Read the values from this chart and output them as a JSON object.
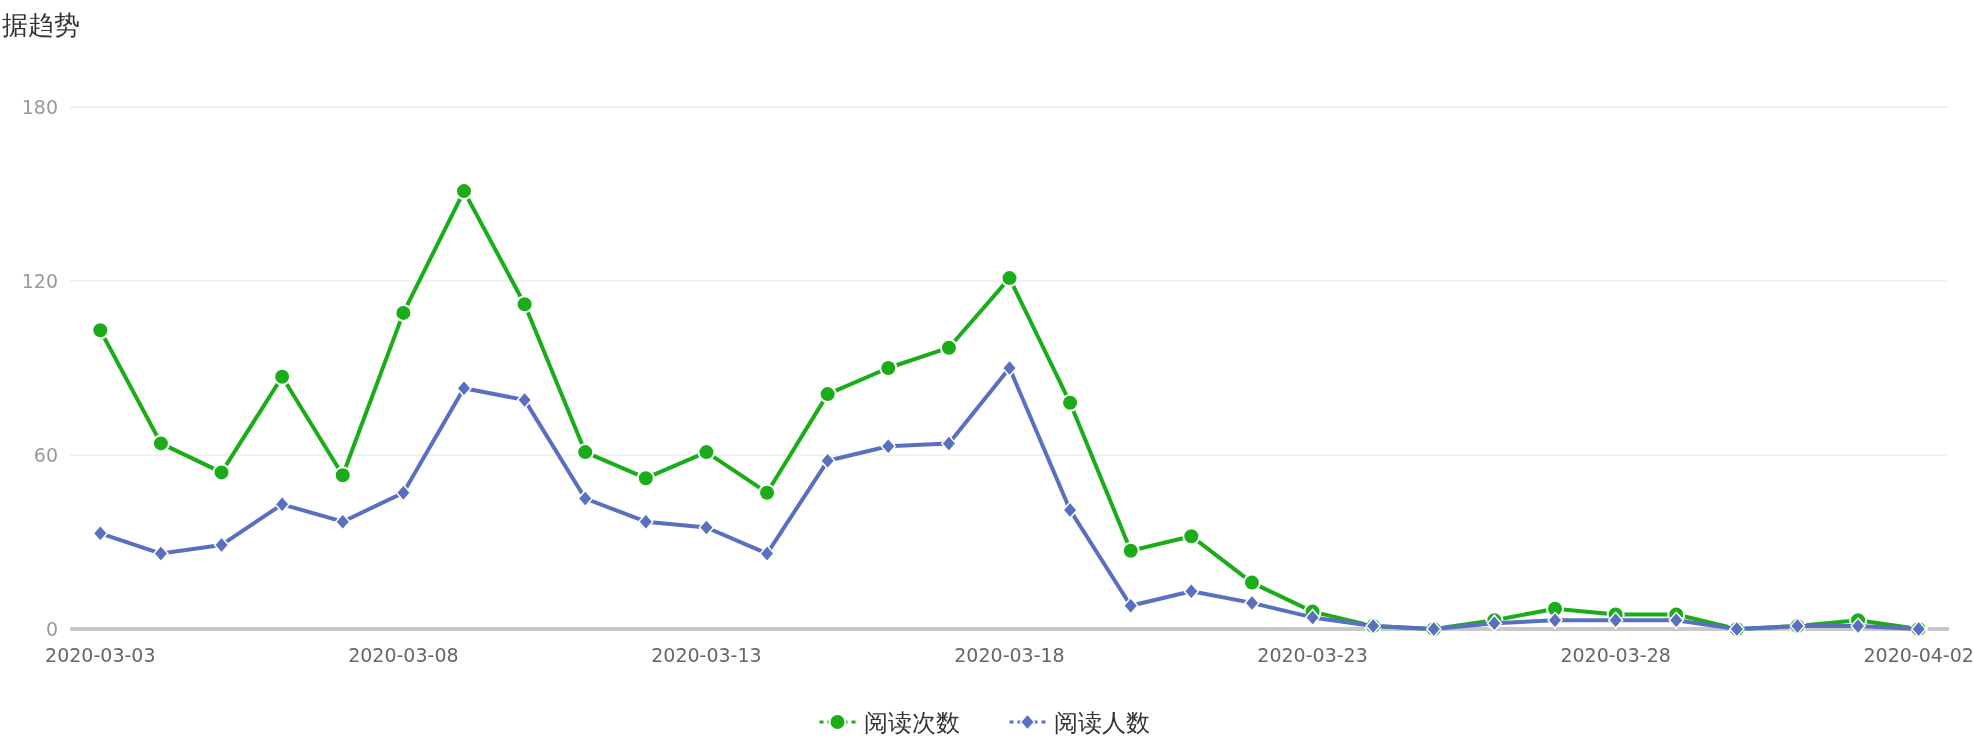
{
  "chart_data": {
    "type": "line",
    "title": "据趋势",
    "x": [
      "2020-03-03",
      "2020-03-04",
      "2020-03-05",
      "2020-03-06",
      "2020-03-07",
      "2020-03-08",
      "2020-03-09",
      "2020-03-10",
      "2020-03-11",
      "2020-03-12",
      "2020-03-13",
      "2020-03-14",
      "2020-03-15",
      "2020-03-16",
      "2020-03-17",
      "2020-03-18",
      "2020-03-19",
      "2020-03-20",
      "2020-03-21",
      "2020-03-22",
      "2020-03-23",
      "2020-03-24",
      "2020-03-25",
      "2020-03-26",
      "2020-03-27",
      "2020-03-28",
      "2020-03-29",
      "2020-03-30",
      "2020-03-31",
      "2020-04-01",
      "2020-04-02"
    ],
    "series": [
      {
        "name": "阅读次数",
        "color": "#1aad19",
        "marker": "circle",
        "values": [
          103,
          64,
          54,
          87,
          53,
          109,
          151,
          112,
          61,
          52,
          61,
          47,
          81,
          90,
          97,
          121,
          78,
          27,
          32,
          16,
          6,
          1,
          0,
          3,
          7,
          5,
          5,
          0,
          1,
          3,
          0
        ]
      },
      {
        "name": "阅读人数",
        "color": "#5b6fc0",
        "marker": "diamond",
        "values": [
          33,
          26,
          29,
          43,
          37,
          47,
          83,
          79,
          45,
          37,
          35,
          26,
          58,
          63,
          64,
          90,
          41,
          8,
          13,
          9,
          4,
          1,
          0,
          2,
          3,
          3,
          3,
          0,
          1,
          1,
          0
        ]
      }
    ],
    "xlim": [
      "2020-03-02T12:00",
      "2020-04-02T12:00"
    ],
    "xticks": [
      "2020-03-03",
      "2020-03-08",
      "2020-03-13",
      "2020-03-18",
      "2020-03-23",
      "2020-03-28",
      "2020-04-02"
    ],
    "ylim": [
      0,
      180
    ],
    "yticks": [
      0,
      60,
      120,
      180
    ],
    "grid": "y",
    "legend": "bottom",
    "line_style": "solid"
  }
}
